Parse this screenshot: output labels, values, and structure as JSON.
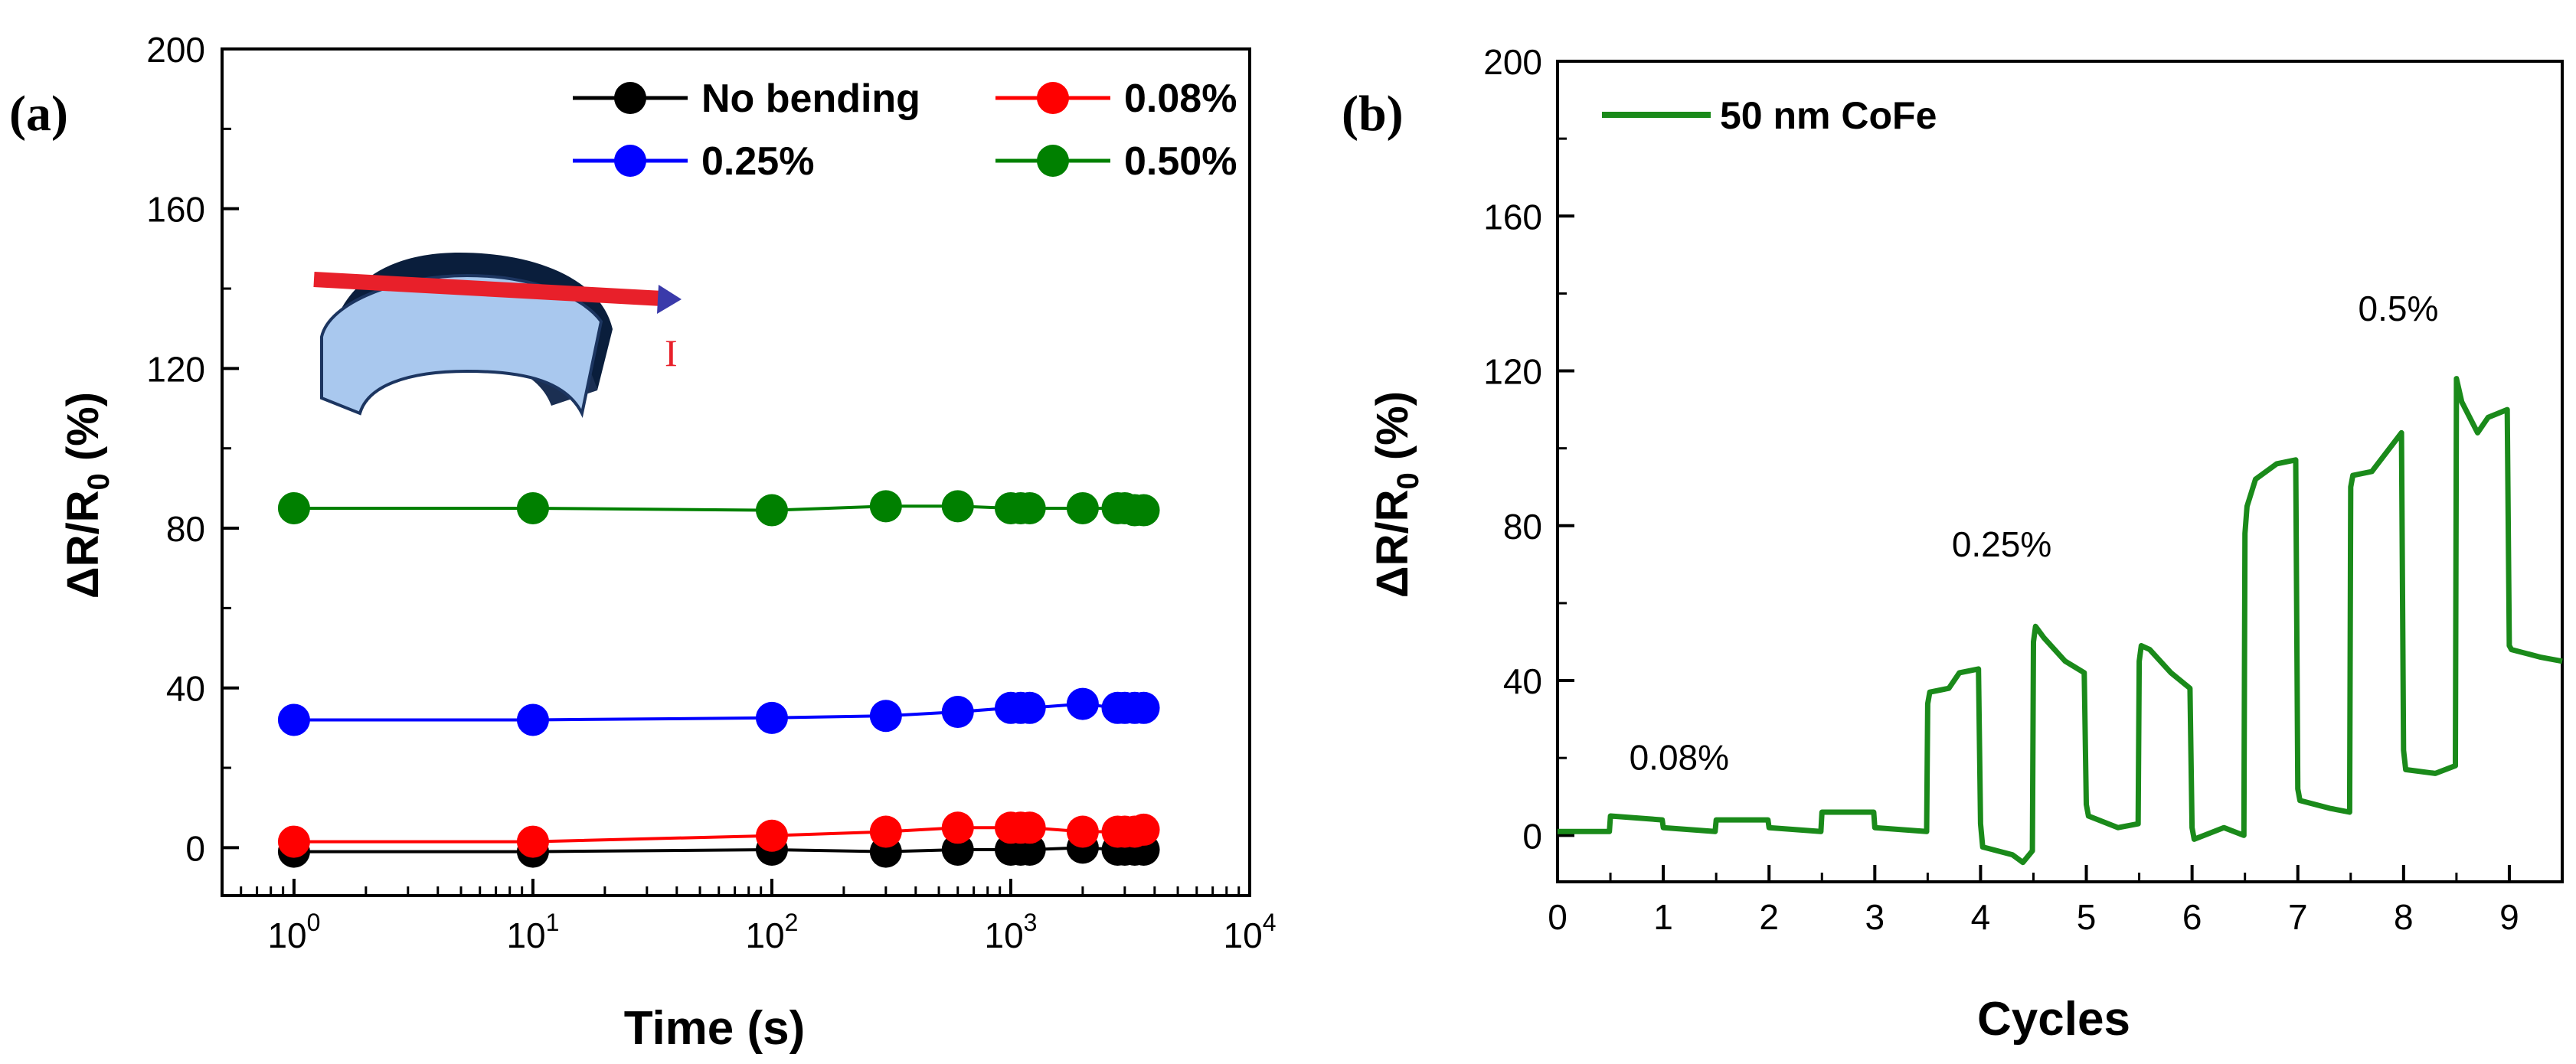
{
  "figure": {
    "panel_a_label": "(a)",
    "panel_b_label": "(b)",
    "inset_current_label": "I"
  },
  "chart_data": [
    {
      "type": "scatter",
      "panel": "a",
      "xscale": "log",
      "xlabel": "Time (s)",
      "ylabel": "ΔR/R0 (%)",
      "ylabel_main": "ΔR/R",
      "ylabel_sub": "0",
      "ylabel_tail": " (%)",
      "xlim": [
        0.5,
        10000
      ],
      "ylim": [
        -12,
        200
      ],
      "xtick_bases": [
        "10",
        "10",
        "10",
        "10",
        "10"
      ],
      "xtick_exps": [
        "0",
        "1",
        "2",
        "3",
        "4"
      ],
      "xtick_values": [
        1,
        10,
        100,
        1000,
        10000
      ],
      "yticks": [
        0,
        40,
        80,
        120,
        160,
        200
      ],
      "legend_position": "top-right",
      "x": [
        1,
        10,
        100,
        300,
        600,
        1000,
        1100,
        1200,
        2000,
        2800,
        3000,
        3300,
        3600
      ],
      "series": [
        {
          "name": "No bending",
          "color": "#000000",
          "values": [
            -1,
            -1,
            -0.5,
            -1,
            -0.5,
            -0.5,
            -0.5,
            -0.5,
            0,
            -0.5,
            -0.5,
            -0.5,
            -0.5
          ]
        },
        {
          "name": "0.08%",
          "color": "#ff0000",
          "values": [
            1.5,
            1.5,
            3,
            4,
            5,
            5,
            5,
            5,
            4,
            4,
            4,
            4,
            4.5
          ]
        },
        {
          "name": "0.25%",
          "color": "#0000ff",
          "values": [
            32,
            32,
            32.5,
            33,
            34,
            35,
            35,
            35,
            36,
            35,
            35,
            35,
            35
          ]
        },
        {
          "name": "0.50%",
          "color": "#008000",
          "values": [
            85,
            85,
            84.5,
            85.5,
            85.5,
            85,
            85,
            85,
            85,
            85,
            85,
            84.5,
            84.5
          ]
        }
      ]
    },
    {
      "type": "line",
      "panel": "b",
      "xlabel": "Cycles",
      "ylabel": "ΔR/R0 (%)",
      "ylabel_main": "ΔR/R",
      "ylabel_sub": "0",
      "ylabel_tail": " (%)",
      "xlim": [
        0,
        9.5
      ],
      "ylim": [
        -12,
        200
      ],
      "xticks": [
        0,
        1,
        2,
        3,
        4,
        5,
        6,
        7,
        8,
        9
      ],
      "yticks": [
        0,
        40,
        80,
        120,
        160,
        200
      ],
      "legend_position": "top-left",
      "annotations": [
        {
          "text": "0.08%",
          "x": 1.15,
          "y": 17
        },
        {
          "text": "0.25%",
          "x": 4.2,
          "y": 72
        },
        {
          "text": "0.5%",
          "x": 7.95,
          "y": 133
        }
      ],
      "series": [
        {
          "name": "50 nm CoFe",
          "color": "#1a8a1a",
          "x": [
            0,
            0.49,
            0.5,
            0.99,
            1.0,
            1.49,
            1.5,
            1.99,
            2.0,
            2.49,
            2.5,
            2.99,
            3.0,
            3.49,
            3.5,
            3.52,
            3.7,
            3.8,
            3.98,
            4.0,
            4.02,
            4.3,
            4.4,
            4.49,
            4.5,
            4.52,
            4.6,
            4.8,
            4.98,
            5.0,
            5.02,
            5.3,
            5.49,
            5.5,
            5.52,
            5.6,
            5.8,
            5.98,
            6.0,
            6.02,
            6.3,
            6.49,
            6.5,
            6.52,
            6.6,
            6.8,
            6.98,
            7.0,
            7.02,
            7.3,
            7.49,
            7.5,
            7.52,
            7.7,
            7.98,
            8.0,
            8.02,
            8.3,
            8.49,
            8.5,
            8.55,
            8.7,
            8.8,
            8.98,
            9.0,
            9.02,
            9.3,
            9.5
          ],
          "values": [
            1,
            1,
            5,
            4,
            2,
            1,
            4,
            4,
            2,
            1,
            6,
            6,
            2,
            1,
            34,
            37,
            38,
            42,
            43,
            3,
            -3,
            -5,
            -7,
            -4,
            50,
            54,
            51,
            45,
            42,
            8,
            5,
            2,
            3,
            45,
            49,
            48,
            42,
            38,
            2,
            -1,
            2,
            0,
            78,
            85,
            92,
            96,
            97,
            12,
            9,
            7,
            6,
            90,
            93,
            94,
            104,
            22,
            17,
            16,
            18,
            118,
            112,
            104,
            108,
            110,
            49,
            48,
            46,
            45
          ]
        }
      ]
    }
  ]
}
